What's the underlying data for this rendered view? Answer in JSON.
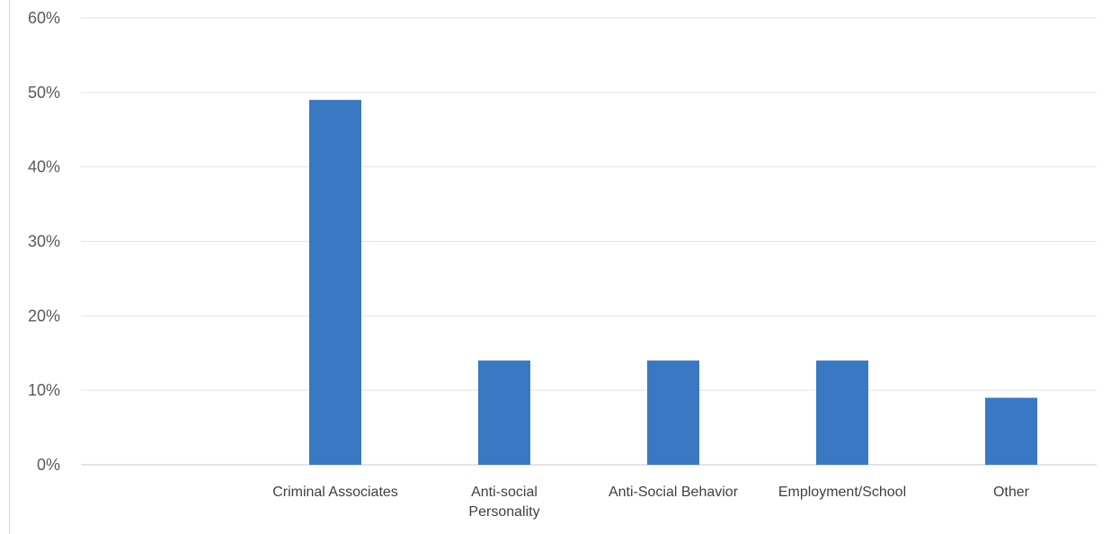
{
  "chart_data": {
    "type": "bar",
    "title": "",
    "xlabel": "",
    "ylabel": "",
    "categories": [
      "Criminal Associates",
      "Anti-social Personality",
      "Anti-Social Behavior",
      "Employment/School",
      "Other"
    ],
    "values": [
      0.49,
      0.14,
      0.14,
      0.14,
      0.09
    ],
    "ylim": [
      0,
      0.6
    ],
    "y_ticks": [
      "0%",
      "10%",
      "20%",
      "30%",
      "40%",
      "50%",
      "60%"
    ],
    "grid": true,
    "legend": "none",
    "bar_color": "#3b78c4"
  }
}
